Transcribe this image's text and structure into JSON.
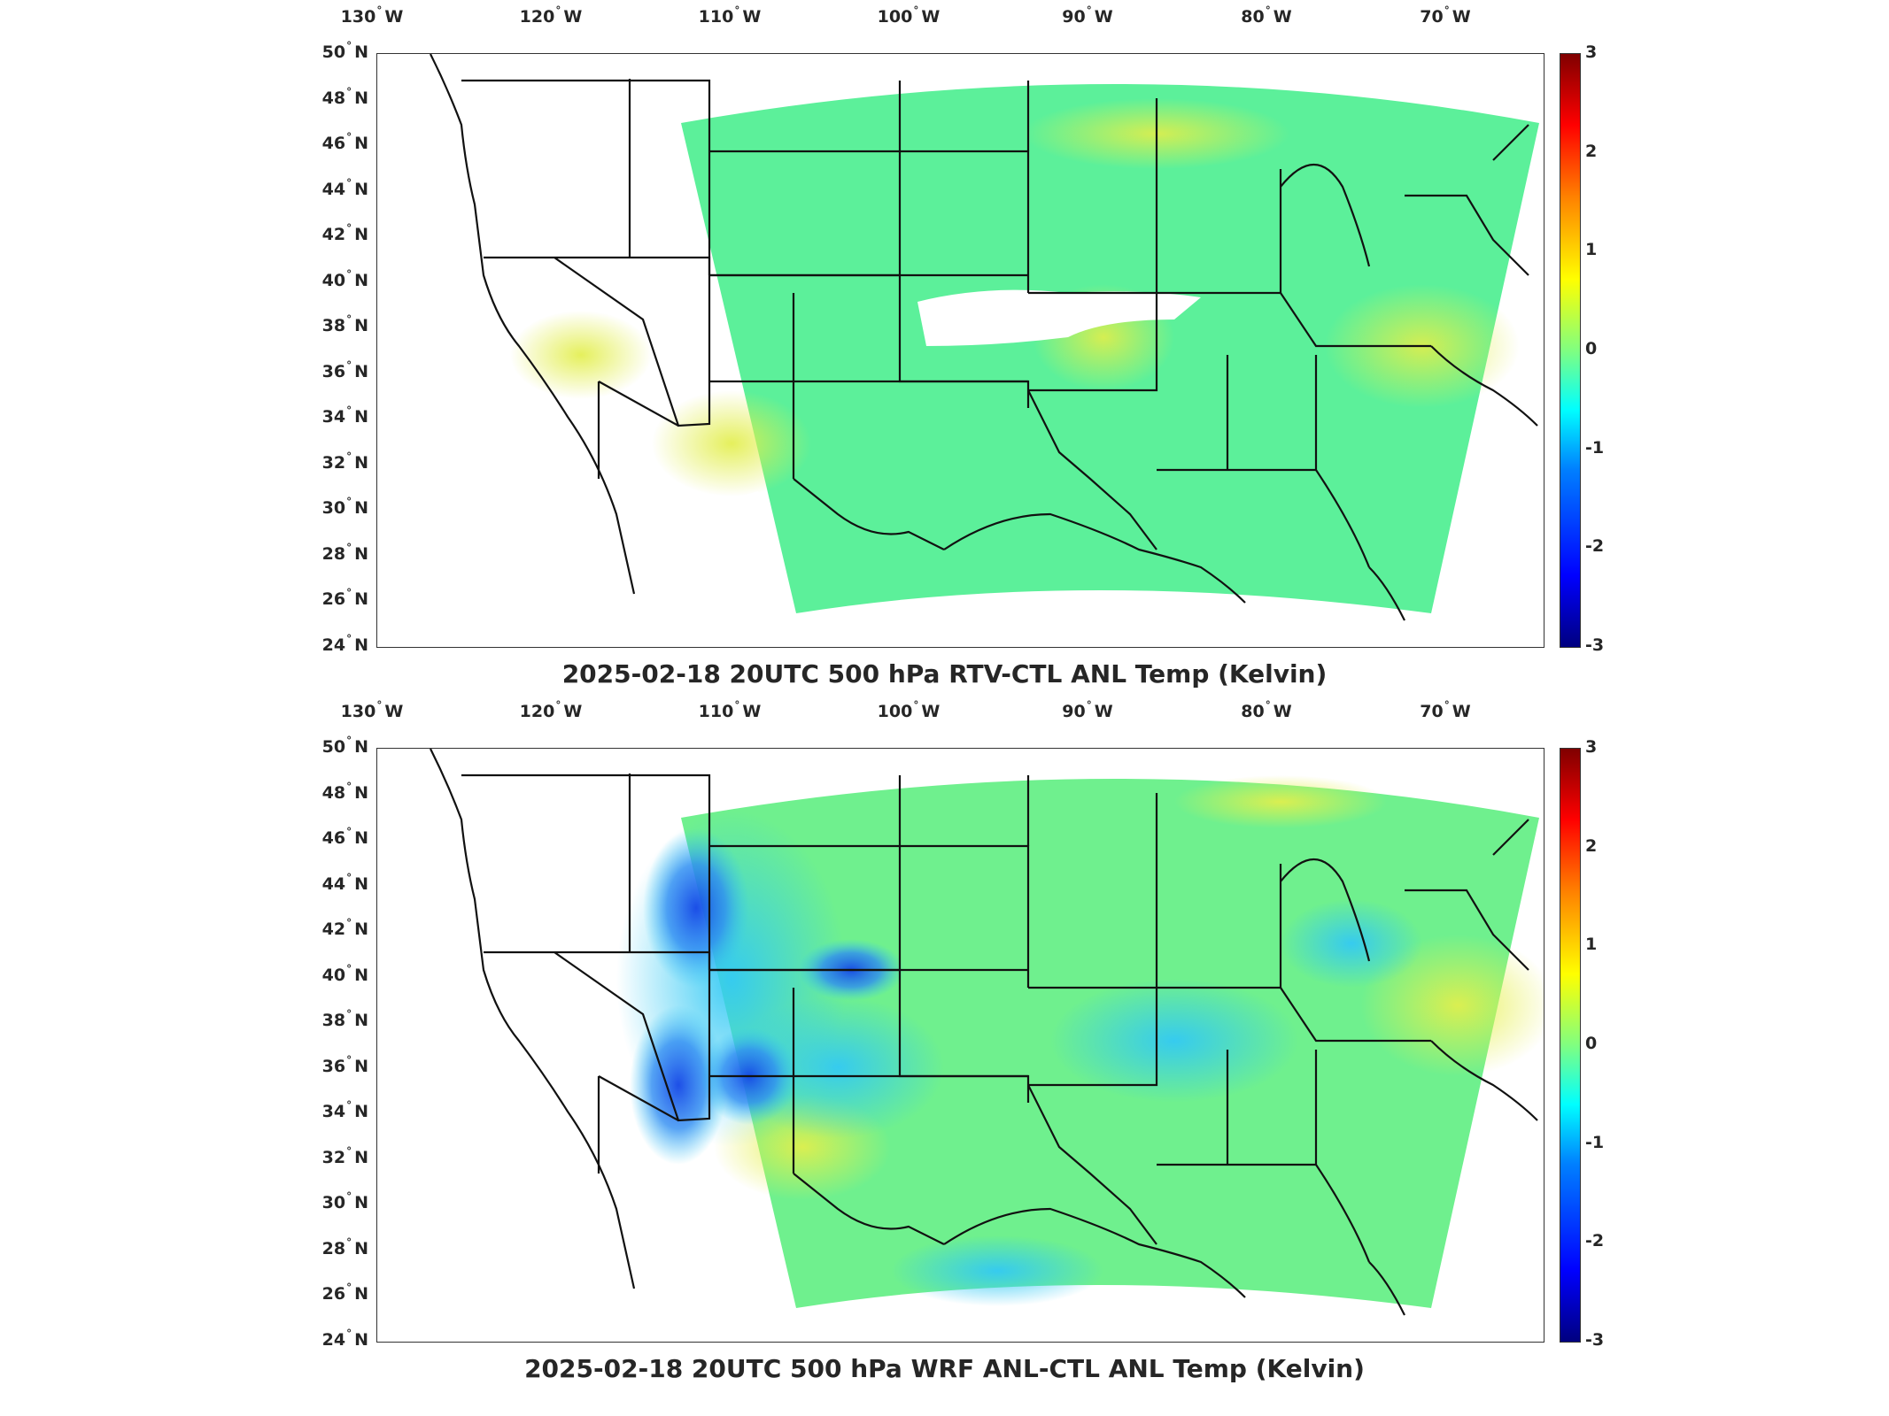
{
  "colors": {
    "domain_base": "#5cf09a",
    "domain_warm": "#d6ee4c",
    "domain_cool": "#33c9f4",
    "domain_cold": "#1446e6",
    "missing": "#ffffff",
    "boundary": "#111111"
  },
  "lon_ticks": [
    {
      "value": "130",
      "dir": "W"
    },
    {
      "value": "120",
      "dir": "W"
    },
    {
      "value": "110",
      "dir": "W"
    },
    {
      "value": "100",
      "dir": "W"
    },
    {
      "value": "90",
      "dir": "W"
    },
    {
      "value": "80",
      "dir": "W"
    },
    {
      "value": "70",
      "dir": "W"
    }
  ],
  "lat_ticks": [
    {
      "value": "50",
      "dir": "N"
    },
    {
      "value": "48",
      "dir": "N"
    },
    {
      "value": "46",
      "dir": "N"
    },
    {
      "value": "44",
      "dir": "N"
    },
    {
      "value": "42",
      "dir": "N"
    },
    {
      "value": "40",
      "dir": "N"
    },
    {
      "value": "38",
      "dir": "N"
    },
    {
      "value": "36",
      "dir": "N"
    },
    {
      "value": "34",
      "dir": "N"
    },
    {
      "value": "32",
      "dir": "N"
    },
    {
      "value": "30",
      "dir": "N"
    },
    {
      "value": "28",
      "dir": "N"
    },
    {
      "value": "26",
      "dir": "N"
    },
    {
      "value": "24",
      "dir": "N"
    }
  ],
  "colorbar_ticks": [
    "3",
    "2",
    "1",
    "0",
    "-1",
    "-2",
    "-3"
  ],
  "panels": [
    {
      "title": "2025-02-18 20UTC 500 hPa RTV-CTL ANL Temp (Kelvin)"
    },
    {
      "title": "2025-02-18 20UTC 500 hPa WRF ANL-CTL ANL Temp (Kelvin)"
    }
  ]
}
